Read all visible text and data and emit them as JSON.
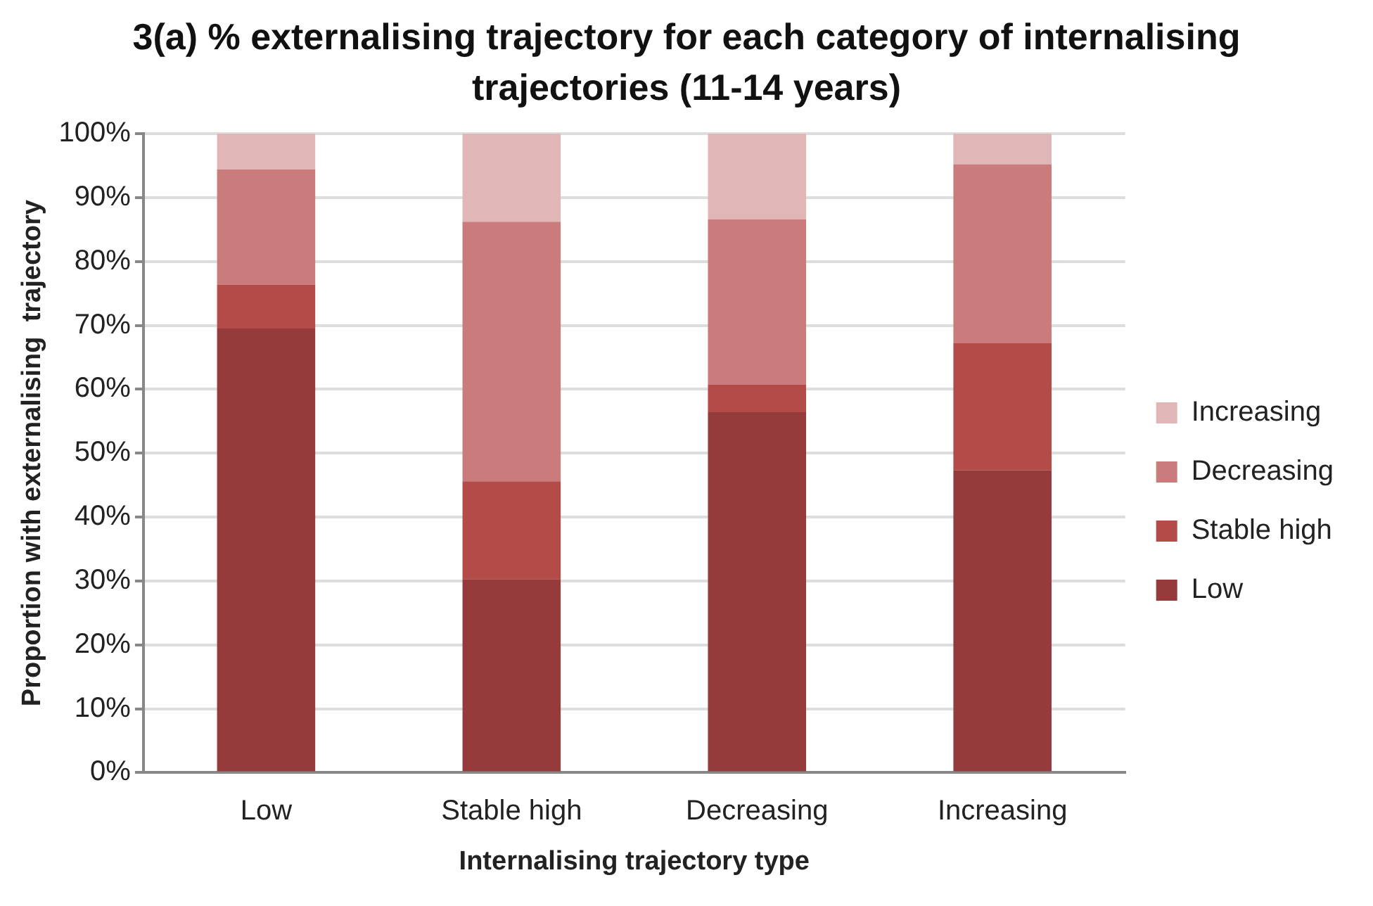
{
  "chart_data": {
    "type": "bar",
    "title": "3(a) % externalising trajectory for each category of internalising trajectories (11-14 years)",
    "xlabel": "Internalising trajectory type",
    "ylabel": "Proportion with externalising  trajectory",
    "categories": [
      "Low",
      "Stable high",
      "Decreasing",
      "Increasing"
    ],
    "series": [
      {
        "name": "Low",
        "color": "#953b3b",
        "values": [
          69.5,
          30.3,
          56.4,
          47.3
        ]
      },
      {
        "name": "Stable high",
        "color": "#b34b48",
        "values": [
          6.9,
          15.3,
          4.3,
          19.9
        ]
      },
      {
        "name": "Decreasing",
        "color": "#c97c7b",
        "values": [
          18.0,
          40.6,
          25.9,
          28.0
        ]
      },
      {
        "name": "Increasing",
        "color": "#e0b7b6",
        "values": [
          5.6,
          13.8,
          13.4,
          4.8
        ]
      }
    ],
    "stacked": true,
    "ylim": [
      0,
      100
    ],
    "yticks": [
      {
        "value": 0,
        "label": "0%"
      },
      {
        "value": 10,
        "label": "10%"
      },
      {
        "value": 20,
        "label": "20%"
      },
      {
        "value": 30,
        "label": "30%"
      },
      {
        "value": 40,
        "label": "40%"
      },
      {
        "value": 50,
        "label": "50%"
      },
      {
        "value": 60,
        "label": "60%"
      },
      {
        "value": 70,
        "label": "70%"
      },
      {
        "value": 80,
        "label": "80%"
      },
      {
        "value": 90,
        "label": "90%"
      },
      {
        "value": 100,
        "label": "100%"
      }
    ],
    "grid": "y",
    "legend": "right"
  }
}
